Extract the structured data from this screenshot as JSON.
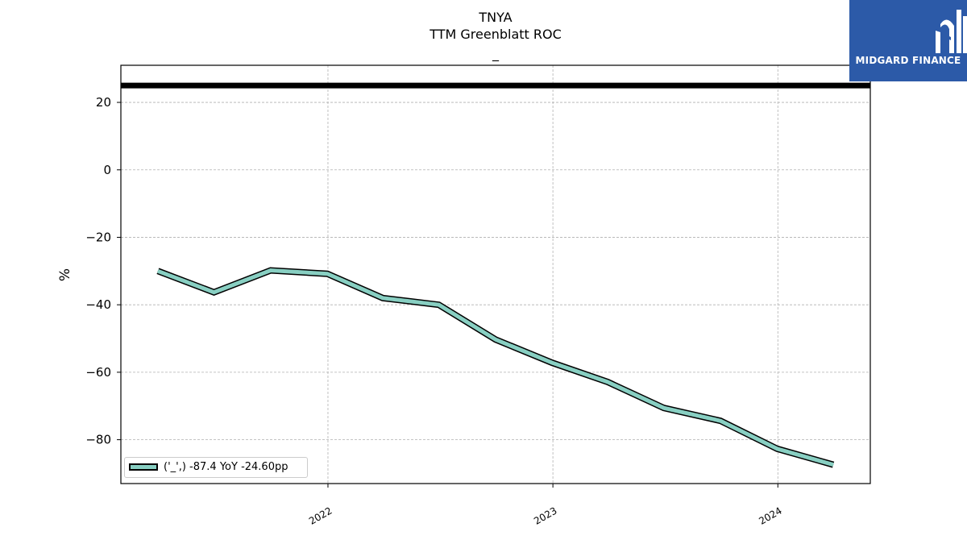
{
  "header": {
    "ticker": "TNYA",
    "metric": "TTM Greenblatt ROC",
    "subtitle": "_"
  },
  "logo": {
    "text": "MIDGARD FINANCE",
    "background": "#2c5aa8"
  },
  "chart_data": {
    "type": "line",
    "title": "TNYA TTM Greenblatt ROC",
    "xlabel": "",
    "ylabel": "%",
    "x_ticks": [
      "2022",
      "2023",
      "2024"
    ],
    "y_ticks": [
      20,
      0,
      -20,
      -40,
      -60,
      -80
    ],
    "ylim": [
      -93,
      31
    ],
    "xlim": [
      "2021-01-30",
      "2024-05-30"
    ],
    "grid": true,
    "legend_position": "lower-left",
    "reference_line": {
      "y": 25,
      "color": "#000000"
    },
    "series": [
      {
        "name": "('_',) -87.4 YoY -24.60pp",
        "color": "#88cfc2",
        "x": [
          "2021-03-31",
          "2021-06-30",
          "2021-09-30",
          "2021-12-31",
          "2022-03-31",
          "2022-06-30",
          "2022-09-30",
          "2022-12-31",
          "2023-03-31",
          "2023-06-30",
          "2023-09-30",
          "2023-12-31",
          "2024-03-31"
        ],
        "values": [
          -30.0,
          -36.3,
          -29.8,
          -30.8,
          -38.0,
          -40.0,
          -50.3,
          -57.2,
          -62.9,
          -70.6,
          -74.4,
          -82.7,
          -87.4
        ]
      }
    ]
  }
}
